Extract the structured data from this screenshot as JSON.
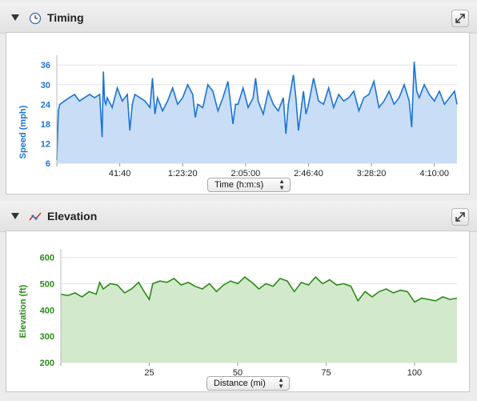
{
  "timing": {
    "title": "Timing",
    "icon": "clock-icon",
    "expand_icon": "expand-icon",
    "selector_label": "Time (h:m:s)"
  },
  "elevation": {
    "title": "Elevation",
    "icon": "line-chart-icon",
    "expand_icon": "expand-icon",
    "selector_label": "Distance (mi)"
  },
  "colors": {
    "speed_line": "#1a73d9",
    "speed_fill": "#c9def6",
    "speed_axis_text": "#1a73d9",
    "elev_line": "#2a8a16",
    "elev_fill": "#d3e9cc",
    "elev_axis_text": "#2a8a16"
  },
  "chart_data": [
    {
      "type": "area",
      "ylabel": "Speed (mph)",
      "xlabel": "",
      "y_ticks": [
        6,
        12,
        18,
        24,
        30,
        36
      ],
      "ylim": [
        6,
        38
      ],
      "x_tick_labels": [
        "41:40",
        "1:23:20",
        "2:05:00",
        "2:46:40",
        "3:28:20",
        "4:10:00"
      ],
      "x_tick_seconds": [
        2500,
        5000,
        7500,
        10000,
        12500,
        15000
      ],
      "xlim": [
        0,
        15900
      ],
      "grid": true,
      "series": [
        {
          "x": [
            0,
            60,
            120,
            300,
            500,
            700,
            900,
            1100,
            1300,
            1500,
            1700,
            1800,
            1850,
            1900,
            1950,
            2000,
            2200,
            2400,
            2600,
            2800,
            2900,
            3000,
            3100,
            3300,
            3500,
            3700,
            3800,
            3900,
            4000,
            4200,
            4400,
            4600,
            4800,
            5000,
            5200,
            5400,
            5500,
            5600,
            5800,
            6000,
            6200,
            6400,
            6600,
            6800,
            7000,
            7100,
            7200,
            7400,
            7600,
            7800,
            7900,
            8000,
            8200,
            8400,
            8600,
            8800,
            9000,
            9100,
            9200,
            9400,
            9500,
            9600,
            9800,
            9900,
            10000,
            10200,
            10400,
            10600,
            10800,
            11000,
            11200,
            11400,
            11600,
            11800,
            12000,
            12200,
            12400,
            12600,
            12800,
            13000,
            13200,
            13400,
            13600,
            13800,
            14000,
            14100,
            14200,
            14300,
            14400,
            14600,
            14800,
            15000,
            15200,
            15400,
            15600,
            15800,
            15900
          ],
          "y": [
            7,
            22,
            24,
            25,
            26,
            27,
            25,
            26,
            27,
            26,
            27,
            14,
            34,
            25,
            24,
            26,
            23,
            29,
            25,
            27,
            16,
            24,
            27,
            26,
            25,
            23,
            32,
            21,
            26,
            22,
            25,
            29,
            24,
            26,
            30,
            27,
            20,
            24,
            23,
            30,
            28,
            22,
            26,
            31,
            18,
            24,
            24,
            29,
            23,
            26,
            32,
            25,
            21,
            28,
            24,
            22,
            26,
            15,
            24,
            33,
            26,
            16,
            28,
            21,
            24,
            32,
            25,
            24,
            29,
            23,
            27,
            25,
            26,
            28,
            22,
            26,
            27,
            31,
            23,
            25,
            28,
            24,
            26,
            30,
            25,
            17,
            37,
            28,
            26,
            30,
            27,
            25,
            28,
            24,
            26,
            28,
            24
          ]
        }
      ]
    },
    {
      "type": "area",
      "ylabel": "Elevation (ft)",
      "xlabel": "",
      "y_ticks": [
        200,
        300,
        400,
        500,
        600
      ],
      "ylim": [
        200,
        620
      ],
      "x_ticks": [
        25,
        50,
        75,
        100
      ],
      "xlim": [
        0,
        112
      ],
      "grid": true,
      "series": [
        {
          "x": [
            0,
            2,
            4,
            6,
            8,
            10,
            11,
            12,
            14,
            16,
            18,
            20,
            22,
            24,
            25,
            26,
            28,
            30,
            32,
            34,
            36,
            38,
            40,
            42,
            44,
            46,
            48,
            50,
            52,
            54,
            56,
            58,
            60,
            62,
            64,
            66,
            68,
            70,
            72,
            74,
            76,
            78,
            80,
            82,
            84,
            86,
            88,
            90,
            92,
            94,
            96,
            98,
            100,
            102,
            104,
            106,
            108,
            110,
            112
          ],
          "y": [
            460,
            455,
            465,
            450,
            470,
            460,
            505,
            480,
            500,
            495,
            465,
            480,
            505,
            460,
            440,
            500,
            510,
            505,
            520,
            495,
            505,
            490,
            480,
            500,
            470,
            495,
            510,
            500,
            525,
            505,
            480,
            500,
            490,
            520,
            510,
            470,
            505,
            495,
            525,
            500,
            515,
            495,
            500,
            490,
            435,
            470,
            450,
            470,
            480,
            465,
            475,
            470,
            430,
            445,
            440,
            435,
            450,
            440,
            445
          ]
        }
      ]
    }
  ]
}
